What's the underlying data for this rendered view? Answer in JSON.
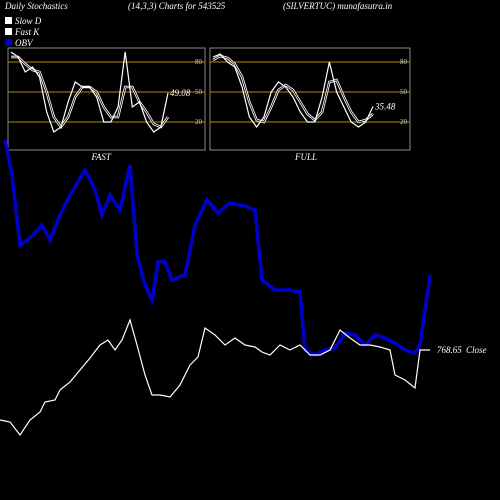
{
  "header": {
    "left": "Daily Stochastics",
    "center": "(14,3,3) Charts for 543525",
    "right": "(SILVERTUC) munafasutra.in"
  },
  "chart_data": [
    {
      "type": "line",
      "title": "FAST",
      "ylim": [
        -8,
        94
      ],
      "yticks": [
        20,
        50,
        80
      ],
      "last_value": 49.08,
      "series": [
        {
          "name": "Slow  D",
          "color": "#ffffff",
          "values": [
            85,
            85,
            78,
            72,
            70,
            50,
            25,
            15,
            25,
            45,
            55,
            55,
            50,
            35,
            25,
            25,
            55,
            55,
            40,
            30,
            18,
            15,
            25
          ]
        },
        {
          "name": "Fast K",
          "color": "#ffffff",
          "values": [
            90,
            85,
            70,
            75,
            65,
            30,
            10,
            15,
            40,
            60,
            55,
            55,
            45,
            20,
            20,
            35,
            90,
            35,
            40,
            20,
            10,
            15,
            49.08
          ]
        }
      ]
    },
    {
      "type": "line",
      "title": "FULL",
      "ylim": [
        -8,
        94
      ],
      "yticks": [
        20,
        50,
        80
      ],
      "last_value": 35.48,
      "series": [
        {
          "name": "Slow  D",
          "color": "#ffffff",
          "values": [
            82,
            86,
            84,
            78,
            65,
            40,
            22,
            20,
            35,
            52,
            57,
            52,
            40,
            28,
            22,
            30,
            60,
            62,
            45,
            30,
            20,
            22,
            28
          ]
        },
        {
          "name": "Fast K",
          "color": "#ffffff",
          "values": [
            85,
            88,
            80,
            75,
            55,
            25,
            15,
            25,
            50,
            60,
            55,
            45,
            30,
            20,
            20,
            45,
            80,
            50,
            35,
            20,
            15,
            20,
            35.48
          ]
        }
      ]
    },
    {
      "type": "line",
      "ylim": [
        0,
        500
      ],
      "last_value": 768.65,
      "last_label": "Close",
      "series": [
        {
          "name": "OBV",
          "color": "#0000cc",
          "x": [
            5,
            12,
            20,
            30,
            42,
            50,
            60,
            70,
            85,
            95,
            102,
            110,
            120,
            130,
            137,
            145,
            152,
            158,
            165,
            172,
            185,
            195,
            207,
            218,
            230,
            245,
            255,
            262,
            275,
            290,
            300,
            305,
            315,
            325,
            335,
            345,
            355,
            365,
            375,
            385,
            395,
            405,
            415,
            420,
            430
          ],
          "values": [
            360,
            325,
            255,
            262,
            275,
            260,
            285,
            305,
            330,
            310,
            285,
            305,
            290,
            335,
            245,
            215,
            200,
            238,
            238,
            220,
            225,
            275,
            300,
            287,
            297,
            294,
            290,
            220,
            210,
            210,
            208,
            150,
            145,
            150,
            152,
            167,
            165,
            155,
            165,
            162,
            157,
            150,
            147,
            155,
            225
          ]
        },
        {
          "name": "Close",
          "color": "#ffffff",
          "x": [
            0,
            10,
            20,
            30,
            40,
            45,
            55,
            60,
            70,
            80,
            90,
            100,
            108,
            115,
            122,
            130,
            137,
            145,
            152,
            160,
            170,
            180,
            190,
            198,
            205,
            215,
            225,
            235,
            245,
            255,
            262,
            270,
            280,
            290,
            300,
            310,
            320,
            330,
            340,
            350,
            360,
            370,
            380,
            390,
            395,
            405,
            415,
            420,
            430
          ],
          "values": [
            80,
            78,
            65,
            80,
            88,
            98,
            100,
            110,
            118,
            130,
            142,
            155,
            160,
            150,
            160,
            180,
            155,
            125,
            105,
            105,
            103,
            115,
            135,
            143,
            172,
            165,
            155,
            162,
            155,
            153,
            148,
            145,
            155,
            150,
            155,
            145,
            145,
            150,
            170,
            162,
            155,
            155,
            153,
            150,
            125,
            120,
            112,
            150,
            150
          ]
        }
      ]
    }
  ]
}
